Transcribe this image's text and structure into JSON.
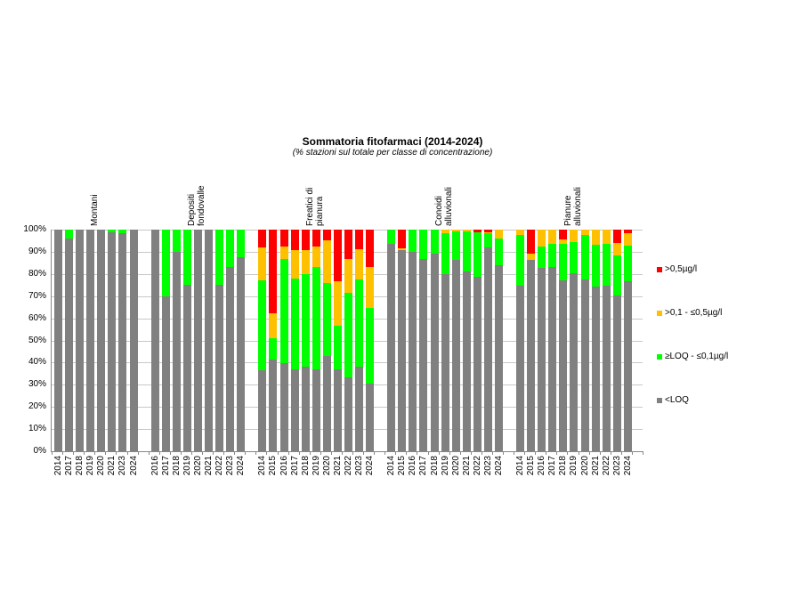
{
  "chart_data": {
    "type": "bar",
    "stacked": true,
    "percent_stacked": true,
    "title": "Sommatoria fitofarmaci (2014-2024)",
    "subtitle": "(% stazioni sul totale per classe di concentrazione)",
    "xlabel": "",
    "ylabel": "",
    "ylim": [
      0,
      100
    ],
    "yticks": [
      "0%",
      "10%",
      "20%",
      "30%",
      "40%",
      "50%",
      "60%",
      "70%",
      "80%",
      "90%",
      "100%"
    ],
    "grid": true,
    "legend_position": "right",
    "series": [
      {
        "name": "<LOQ",
        "color": "#808080"
      },
      {
        "name": "≥LOQ - ≤0,1µg/l",
        "color": "#00ff00"
      },
      {
        "name": ">0,1 - ≤0,5µg/l",
        "color": "#ffc000"
      },
      {
        "name": ">0,5µg/l",
        "color": "#ff0000"
      }
    ],
    "groups": [
      {
        "name": "Montani",
        "categories": [
          "2014",
          "2017",
          "2018",
          "2019",
          "2020",
          "2021",
          "2023",
          "2024"
        ],
        "values": {
          "<LOQ": [
            100,
            96.0,
            100,
            100,
            100,
            99.0,
            98.5,
            100
          ],
          "≥LOQ - ≤0,1µg/l": [
            0,
            4.0,
            0,
            0,
            0,
            1.0,
            1.5,
            0
          ],
          ">0,1 - ≤0,5µg/l": [
            0,
            0,
            0,
            0,
            0,
            0,
            0,
            0
          ],
          ">0,5µg/l": [
            0,
            0,
            0,
            0,
            0,
            0,
            0,
            0
          ]
        }
      },
      {
        "name": "Depositi fondovalle",
        "categories": [
          "2016",
          "2017",
          "2018",
          "2019",
          "2020",
          "2021",
          "2022",
          "2023",
          "2024"
        ],
        "values": {
          "<LOQ": [
            100,
            70.0,
            90.0,
            75.0,
            100,
            100,
            75.0,
            83.3,
            87.5
          ],
          "≥LOQ - ≤0,1µg/l": [
            0,
            30.0,
            10.0,
            25.0,
            0,
            0,
            25.0,
            16.7,
            12.5
          ],
          ">0,1 - ≤0,5µg/l": [
            0,
            0,
            0,
            0,
            0,
            0,
            0,
            0,
            0
          ],
          ">0,5µg/l": [
            0,
            0,
            0,
            0,
            0,
            0,
            0,
            0,
            0
          ]
        }
      },
      {
        "name": "Freatici di pianura",
        "categories": [
          "2014",
          "2015",
          "2016",
          "2017",
          "2018",
          "2019",
          "2020",
          "2021",
          "2022",
          "2023",
          "2024"
        ],
        "values": {
          "<LOQ": [
            36.5,
            41.5,
            39.8,
            37.0,
            38.2,
            37.0,
            43.0,
            36.8,
            33.5,
            38.0,
            30.5
          ],
          "≥LOQ - ≤0,1µg/l": [
            40.5,
            9.5,
            46.9,
            41.0,
            41.8,
            46.3,
            32.9,
            20.0,
            38.1,
            39.5,
            34.0
          ],
          ">0,1 - ≤0,5µg/l": [
            15.0,
            11.4,
            5.8,
            12.8,
            10.8,
            9.2,
            19.1,
            19.9,
            15.0,
            13.8,
            18.5
          ],
          ">0,5µg/l": [
            8.0,
            37.6,
            7.5,
            9.2,
            9.2,
            7.5,
            5.0,
            23.3,
            13.4,
            8.7,
            17.0
          ]
        }
      },
      {
        "name": "Conoidi alluvionali",
        "categories": [
          "2014",
          "2015",
          "2016",
          "2017",
          "2018",
          "2019",
          "2020",
          "2021",
          "2022",
          "2023",
          "2024"
        ],
        "values": {
          "<LOQ": [
            93.6,
            90.8,
            90.0,
            86.9,
            89.3,
            79.8,
            86.3,
            81.0,
            78.6,
            92.0,
            84.0
          ],
          "≥LOQ - ≤0,1µg/l": [
            6.4,
            0,
            10.0,
            13.1,
            10.7,
            18.5,
            12.9,
            18.2,
            20.2,
            6.8,
            12.0
          ],
          ">0,1 - ≤0,5µg/l": [
            0,
            0.6,
            0,
            0,
            0,
            1.7,
            0.8,
            0.8,
            0,
            0.2,
            4.0
          ],
          ">0,5µg/l": [
            0,
            8.6,
            0,
            0,
            0,
            0,
            0,
            0,
            1.2,
            1.0,
            0
          ]
        }
      },
      {
        "name": "Pianure alluvionali",
        "categories": [
          "2014",
          "2015",
          "2016",
          "2017",
          "2018",
          "2019",
          "2020",
          "2021",
          "2022",
          "2023",
          "2024"
        ],
        "values": {
          "<LOQ": [
            74.8,
            86.5,
            82.7,
            83.1,
            77.0,
            80.3,
            77.5,
            74.3,
            74.8,
            70.4,
            76.7
          ],
          "≥LOQ - ≤0,1µg/l": [
            22.8,
            0,
            9.5,
            10.5,
            16.6,
            14.1,
            20.0,
            18.9,
            18.8,
            18.0,
            16.1
          ],
          ">0,1 - ≤0,5µg/l": [
            2.4,
            2.5,
            7.8,
            6.4,
            2.1,
            5.6,
            2.5,
            6.8,
            6.4,
            5.6,
            5.6
          ],
          ">0,5µg/l": [
            0,
            11.0,
            0,
            0,
            4.3,
            0,
            0,
            0,
            0,
            6.0,
            1.6
          ]
        }
      }
    ]
  },
  "legend": {
    "items": [
      {
        "label": ">0,5µg/l",
        "color": "#ff0000"
      },
      {
        "label": ">0,1 - ≤0,5µg/l",
        "color": "#ffc000"
      },
      {
        "label": "≥LOQ - ≤0,1µg/l",
        "color": "#00ff00"
      },
      {
        "label": "<LOQ",
        "color": "#808080"
      }
    ]
  },
  "group_labels": [
    {
      "line1": "Montani",
      "line2": ""
    },
    {
      "line1": "Depositi",
      "line2": "fondovalle"
    },
    {
      "line1": "Freatici di",
      "line2": "pianura"
    },
    {
      "line1": "Conoidi",
      "line2": "alluvionali"
    },
    {
      "line1": "Pianure",
      "line2": "alluvionali"
    }
  ]
}
